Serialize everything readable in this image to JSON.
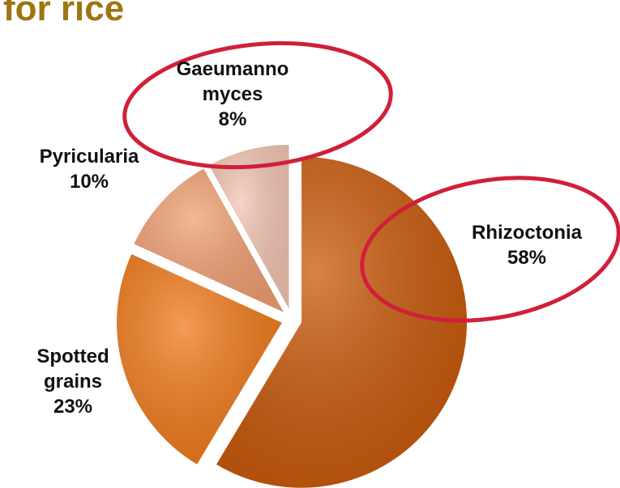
{
  "chart_data": {
    "type": "pie",
    "title": "for rice",
    "categories": [
      "Rhizoctonia",
      "Spotted\ngrains",
      "Pyricularia",
      "Gaeumanno\nmyces"
    ],
    "values": [
      58,
      23,
      10,
      8
    ],
    "value_labels": [
      "58%",
      "23%",
      "10%",
      "8%"
    ],
    "colors": [
      "#c95a0c",
      "#f07b1c",
      "#f1a173",
      "#f3c6b3"
    ]
  }
}
